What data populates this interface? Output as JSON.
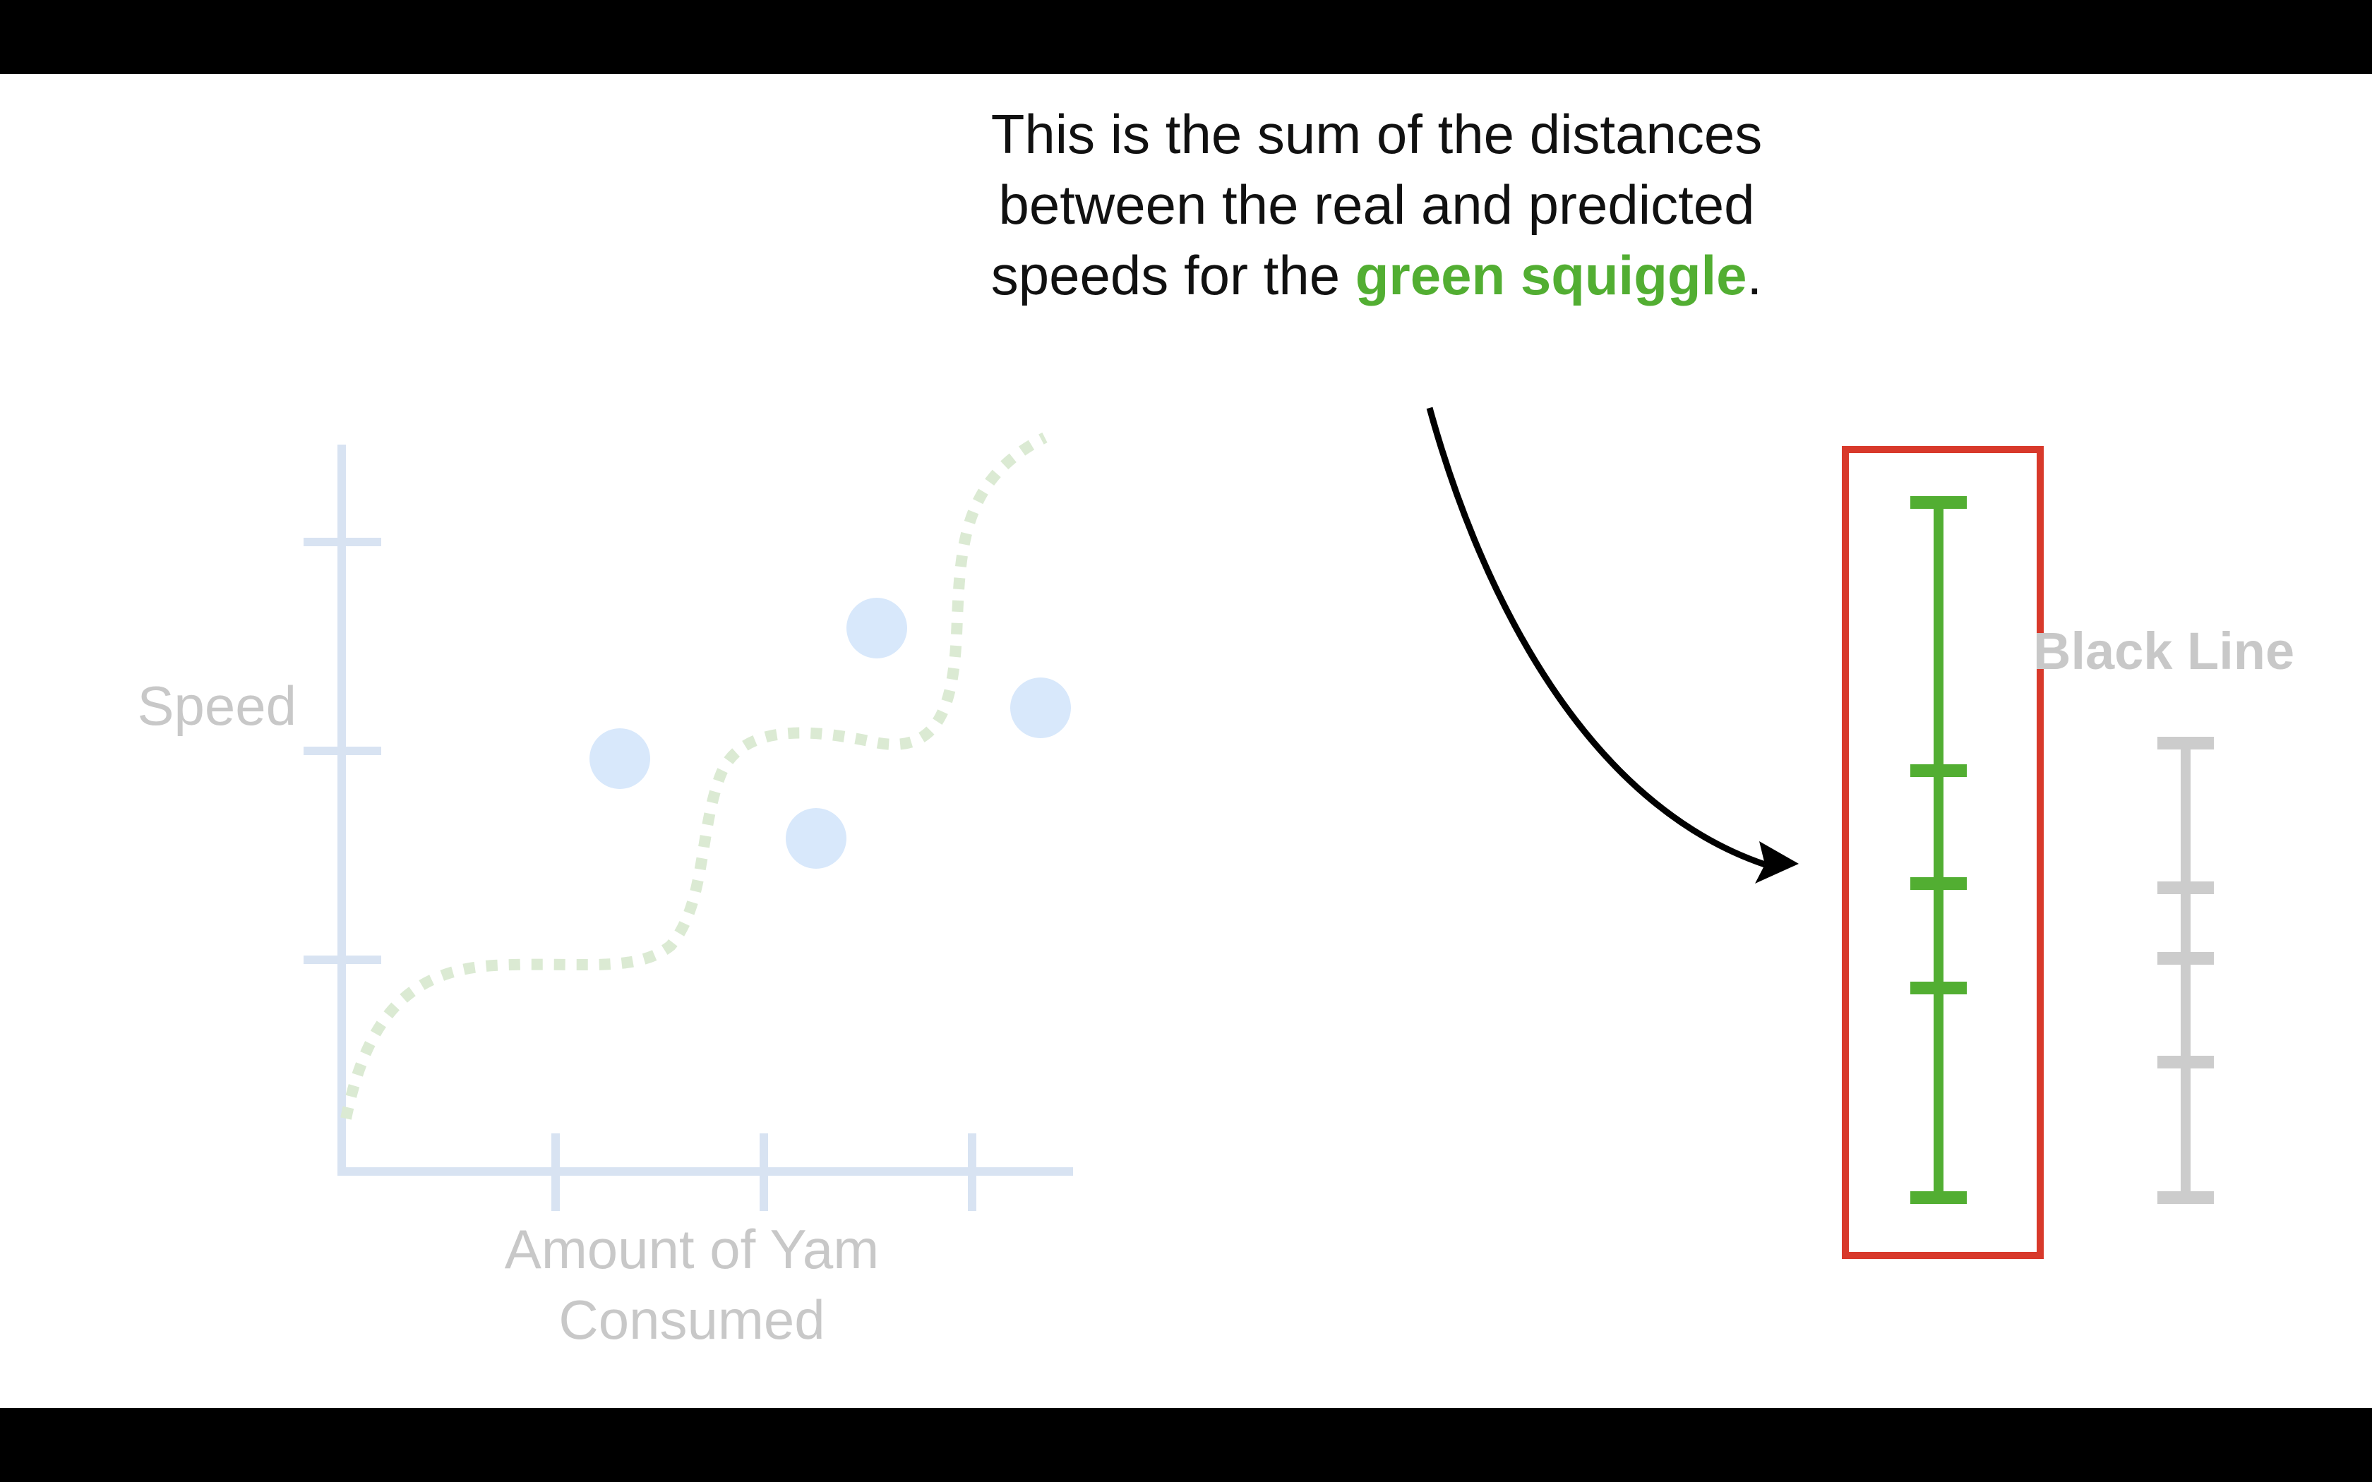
{
  "caption": {
    "line1": "This is the sum of the distances",
    "line2": "between the real and predicted",
    "line3_prefix": "speeds for the ",
    "line3_highlight": "green squiggle",
    "line3_suffix": "."
  },
  "graph": {
    "y_axis_label": "Speed",
    "x_axis_label_line1": "Amount of Yam",
    "x_axis_label_line2": "Consumed"
  },
  "comparison": {
    "right_label": "Black Line"
  },
  "colors": {
    "axis": "#d8e3f2",
    "points": "#d8e8fb",
    "squiggle": "#dbead3",
    "green_bar": "#52ae32",
    "gray_bar": "#cccccc",
    "highlight_box": "#d8392b",
    "arrow": "#000000"
  }
}
